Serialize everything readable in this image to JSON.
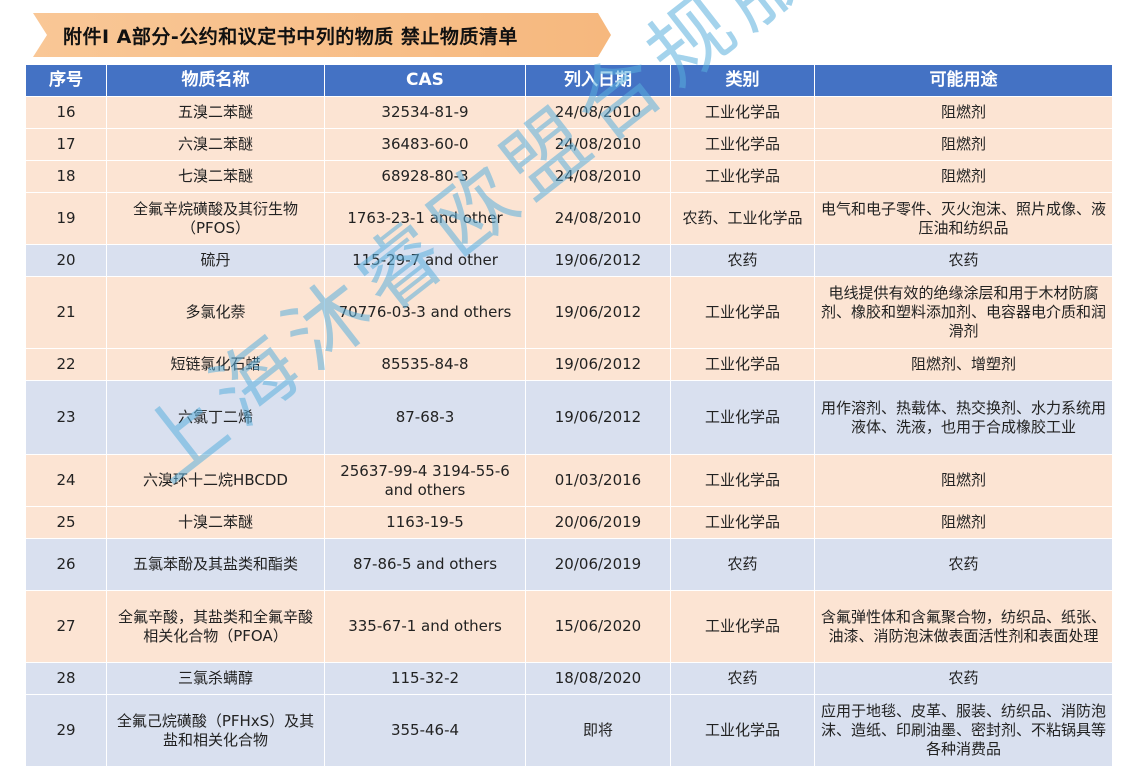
{
  "banner": {
    "title": "附件Ⅰ A部分-公约和议定书中列的物质   禁止物质清单"
  },
  "table": {
    "headers": {
      "no": "序号",
      "name": "物质名称",
      "cas": "CAS",
      "date": "列入日期",
      "category": "类别",
      "uses": "可能用途"
    },
    "rows": [
      {
        "no": "16",
        "name": "五溴二苯醚",
        "cas": "32534-81-9",
        "date": "24/08/2010",
        "category": "工业化学品",
        "uses": "阻燃剂"
      },
      {
        "no": "17",
        "name": "六溴二苯醚",
        "cas": "36483-60-0",
        "date": "24/08/2010",
        "category": "工业化学品",
        "uses": "阻燃剂"
      },
      {
        "no": "18",
        "name": "七溴二苯醚",
        "cas": "68928-80-3",
        "date": "24/08/2010",
        "category": "工业化学品",
        "uses": "阻燃剂"
      },
      {
        "no": "19",
        "name": "全氟辛烷磺酸及其衍生物（PFOS）",
        "cas": "1763-23-1 and other",
        "date": "24/08/2010",
        "category": "农药、工业化学品",
        "uses": "电气和电子零件、灭火泡沫、照片成像、液压油和纺织品"
      },
      {
        "no": "20",
        "name": "硫丹",
        "cas": "115-29-7 and other",
        "date": "19/06/2012",
        "category": "农药",
        "uses": "农药"
      },
      {
        "no": "21",
        "name": "多氯化萘",
        "cas": "70776-03-3 and others",
        "date": "19/06/2012",
        "category": "工业化学品",
        "uses": "电线提供有效的绝缘涂层和用于木材防腐剂、橡胶和塑料添加剂、电容器电介质和润滑剂"
      },
      {
        "no": "22",
        "name": "短链氯化石蜡",
        "cas": "85535-84-8",
        "date": "19/06/2012",
        "category": "工业化学品",
        "uses": "阻燃剂、增塑剂"
      },
      {
        "no": "23",
        "name": "六氯丁二烯",
        "cas": "87-68-3",
        "date": "19/06/2012",
        "category": "工业化学品",
        "uses": "用作溶剂、热载体、热交换剂、水力系统用液体、洗液，也用于合成橡胶工业"
      },
      {
        "no": "24",
        "name": "六溴环十二烷HBCDD",
        "cas": "25637-99-4  3194-55-6 and others",
        "date": "01/03/2016",
        "category": "工业化学品",
        "uses": "阻燃剂"
      },
      {
        "no": "25",
        "name": "十溴二苯醚",
        "cas": "1163-19-5",
        "date": "20/06/2019",
        "category": "工业化学品",
        "uses": "阻燃剂"
      },
      {
        "no": "26",
        "name": "五氯苯酚及其盐类和酯类",
        "cas": "87-86-5 and others",
        "date": "20/06/2019",
        "category": "农药",
        "uses": "农药"
      },
      {
        "no": "27",
        "name": "全氟辛酸，其盐类和全氟辛酸相关化合物（PFOA）",
        "cas": "335-67-1 and others",
        "date": "15/06/2020",
        "category": "工业化学品",
        "uses": "含氟弹性体和含氟聚合物，纺织品、纸张、油漆、消防泡沫做表面活性剂和表面处理"
      },
      {
        "no": "28",
        "name": "三氯杀螨醇",
        "cas": "115-32-2",
        "date": "18/08/2020",
        "category": "农药",
        "uses": "农药"
      },
      {
        "no": "29",
        "name": "全氟己烷磺酸（PFHxS）及其盐和相关化合物",
        "cas": "355-46-4",
        "date": "即将",
        "category": "工业化学品",
        "uses": "应用于地毯、皮革、服装、纺织品、消防泡沫、造纸、印刷油墨、密封剂、不粘锅具等各种消费品"
      }
    ]
  },
  "watermark": {
    "text": "上海沐睿欧盟合规服务方案"
  },
  "colors": {
    "header_bg": "#4472c4",
    "row_orange": "#fce4d3",
    "row_blue": "#d9e0ef",
    "banner": "#f6b87e",
    "watermark": "#5aafdc"
  }
}
